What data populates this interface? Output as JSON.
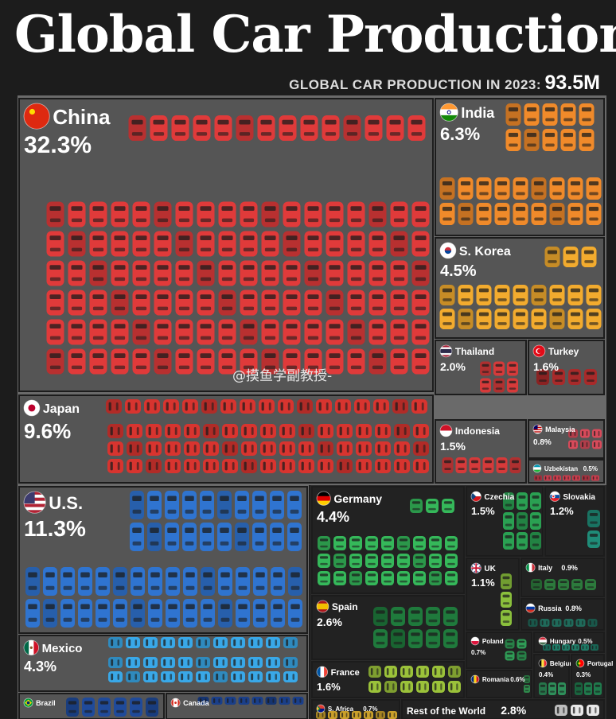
{
  "header": {
    "title": "Global Car Production",
    "subtitle_label": "GLOBAL CAR PRODUCTION IN 2023:",
    "subtitle_value": "93.5M"
  },
  "watermark": "@摸鱼学副教授-",
  "chart_data": {
    "type": "treemap",
    "title": "Global Car Production",
    "total_label": "GLOBAL CAR PRODUCTION IN 2023: 93.5M",
    "units": "share of global car production (%)",
    "items": [
      {
        "country": "China",
        "share": 32.3,
        "label": "32.3%",
        "color": "#e03a3a",
        "flag": "cn",
        "region": "Asia"
      },
      {
        "country": "India",
        "share": 6.3,
        "label": "6.3%",
        "color": "#f08a2a",
        "flag": "in",
        "region": "Asia"
      },
      {
        "country": "S. Korea",
        "share": 4.5,
        "label": "4.5%",
        "color": "#f2ab2e",
        "flag": "kr",
        "region": "Asia"
      },
      {
        "country": "Thailand",
        "share": 2.0,
        "label": "2.0%",
        "color": "#d63a3a",
        "flag": "th",
        "region": "Asia"
      },
      {
        "country": "Turkey",
        "share": 1.6,
        "label": "1.6%",
        "color": "#a82a2a",
        "flag": "tr",
        "region": "Asia"
      },
      {
        "country": "Japan",
        "share": 9.6,
        "label": "9.6%",
        "color": "#d8342f",
        "flag": "jp",
        "region": "Asia"
      },
      {
        "country": "Indonesia",
        "share": 1.5,
        "label": "1.5%",
        "color": "#d63a3a",
        "flag": "id",
        "region": "Asia"
      },
      {
        "country": "Malaysia",
        "share": 0.8,
        "label": "0.8%",
        "color": "#d84a5a",
        "flag": "my",
        "region": "Asia"
      },
      {
        "country": "Uzbekistan",
        "share": 0.5,
        "label": "0.5%",
        "color": "#c73c4c",
        "flag": "uz",
        "region": "Asia"
      },
      {
        "country": "U.S.",
        "share": 11.3,
        "label": "11.3%",
        "color": "#2f74d0",
        "flag": "us",
        "region": "Americas"
      },
      {
        "country": "Mexico",
        "share": 4.3,
        "label": "4.3%",
        "color": "#39a8e8",
        "flag": "mx",
        "region": "Americas"
      },
      {
        "country": "Brazil",
        "share": null,
        "label": "",
        "color": "#1f4a9a",
        "flag": "br",
        "region": "Americas"
      },
      {
        "country": "Canada",
        "share": null,
        "label": "",
        "color": "#1a3f8a",
        "flag": "ca",
        "region": "Americas"
      },
      {
        "country": "Germany",
        "share": 4.4,
        "label": "4.4%",
        "color": "#35b85a",
        "flag": "de",
        "region": "Europe"
      },
      {
        "country": "Spain",
        "share": 2.6,
        "label": "2.6%",
        "color": "#1f7a3c",
        "flag": "es",
        "region": "Europe"
      },
      {
        "country": "France",
        "share": 1.6,
        "label": "1.6%",
        "color": "#9bc23a",
        "flag": "fr",
        "region": "Europe"
      },
      {
        "country": "Czechia",
        "share": 1.5,
        "label": "1.5%",
        "color": "#2aa052",
        "flag": "cz",
        "region": "Europe"
      },
      {
        "country": "Slovakia",
        "share": 1.2,
        "label": "1.2%",
        "color": "#1f8c78",
        "flag": "sk",
        "region": "Europe"
      },
      {
        "country": "UK",
        "share": 1.1,
        "label": "1.1%",
        "color": "#8abf3c",
        "flag": "gb",
        "region": "Europe"
      },
      {
        "country": "Italy",
        "share": 0.9,
        "label": "0.9%",
        "color": "#2c7a3c",
        "flag": "it",
        "region": "Europe"
      },
      {
        "country": "Russia",
        "share": 0.8,
        "label": "0.8%",
        "color": "#1f6a5a",
        "flag": "ru",
        "region": "Europe"
      },
      {
        "country": "Poland",
        "share": 0.7,
        "label": "0.7%",
        "color": "#2f9c56",
        "flag": "pl",
        "region": "Europe"
      },
      {
        "country": "Hungary",
        "share": 0.5,
        "label": "0.5%",
        "color": "#1f7a66",
        "flag": "hu",
        "region": "Europe"
      },
      {
        "country": "Romania",
        "share": 0.6,
        "label": "0.6%",
        "color": "#2f8a4c",
        "flag": "ro",
        "region": "Europe"
      },
      {
        "country": "Belgium",
        "share": 0.4,
        "label": "0.4%",
        "color": "#2e8f5a",
        "flag": "be",
        "region": "Europe"
      },
      {
        "country": "Portugal",
        "share": 0.3,
        "label": "0.3%",
        "color": "#1f7a4c",
        "flag": "pt",
        "region": "Europe"
      },
      {
        "country": "S. Africa",
        "share": 0.7,
        "label": "0.7%",
        "color": "#caa02a",
        "flag": "za",
        "region": "Africa"
      },
      {
        "country": "Rest of the World",
        "share": 2.8,
        "label": "2.8%",
        "color": "#e8e8e8",
        "flag": "",
        "region": "Other"
      }
    ]
  }
}
